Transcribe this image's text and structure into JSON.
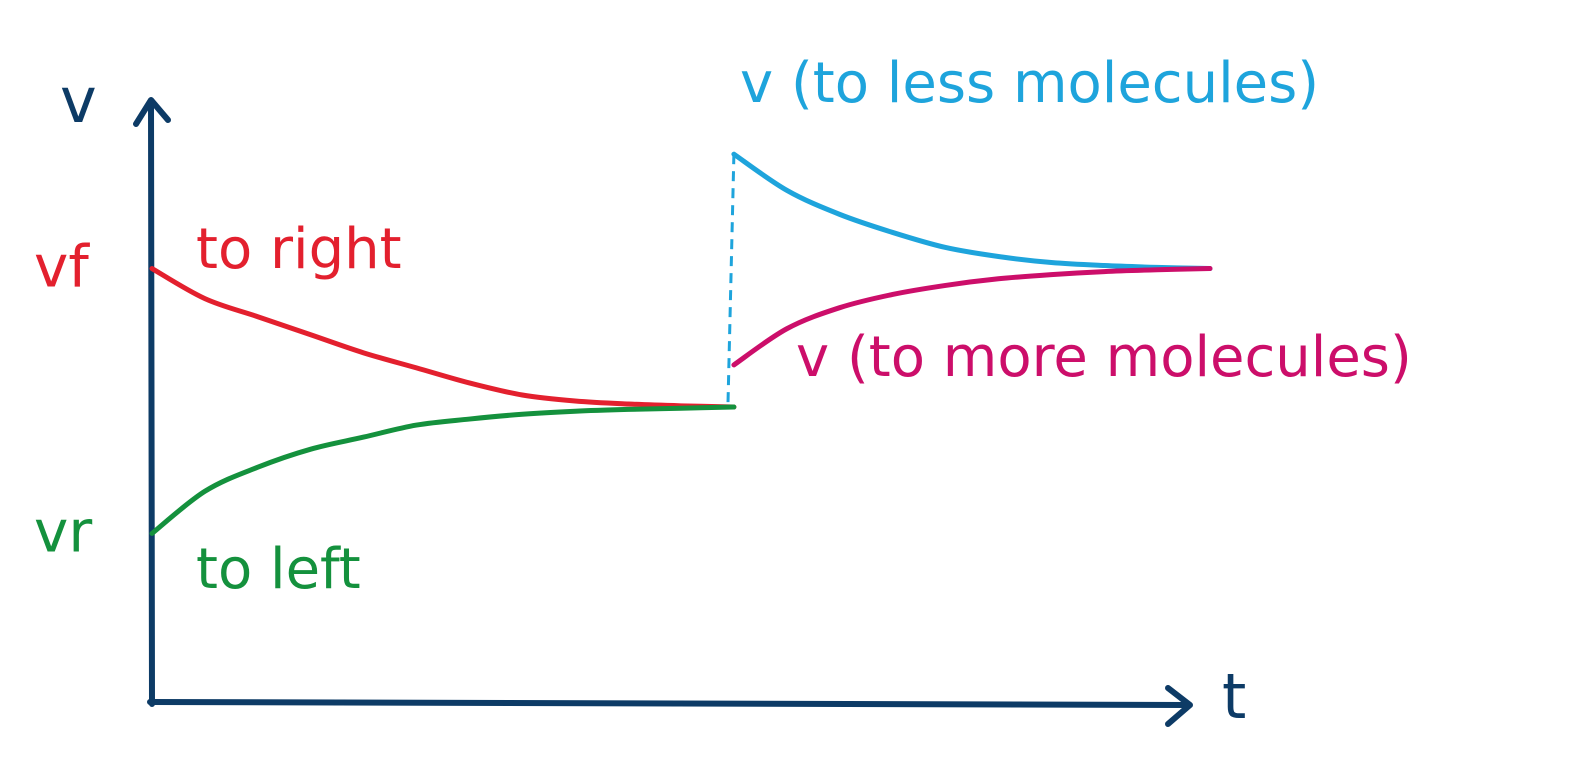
{
  "chart_data": {
    "type": "line",
    "title": "",
    "xlabel": "t",
    "ylabel": "v",
    "y_tick_labels": [
      {
        "text": "vf",
        "y": 0.72,
        "color": "#e3202e"
      },
      {
        "text": "vr",
        "y": 0.28,
        "color": "#14913d"
      }
    ],
    "x_range": [
      0,
      1
    ],
    "y_range": [
      0,
      1
    ],
    "grid": false,
    "disturbance_x": 0.55,
    "series": [
      {
        "name": "to right",
        "color": "#e3202e",
        "x": [
          0.0,
          0.05,
          0.1,
          0.15,
          0.2,
          0.25,
          0.3,
          0.35,
          0.4,
          0.45,
          0.5,
          0.55
        ],
        "y": [
          0.72,
          0.67,
          0.64,
          0.61,
          0.58,
          0.555,
          0.53,
          0.51,
          0.5,
          0.495,
          0.492,
          0.49
        ]
      },
      {
        "name": "to left",
        "color": "#14913d",
        "x": [
          0.0,
          0.05,
          0.1,
          0.15,
          0.2,
          0.25,
          0.3,
          0.35,
          0.4,
          0.45,
          0.5,
          0.55
        ],
        "y": [
          0.28,
          0.35,
          0.39,
          0.42,
          0.44,
          0.46,
          0.47,
          0.478,
          0.483,
          0.486,
          0.488,
          0.49
        ]
      },
      {
        "name": "v (to less molecules)",
        "color": "#1ea4dc",
        "x": [
          0.55,
          0.6,
          0.65,
          0.7,
          0.75,
          0.8,
          0.85,
          0.9,
          0.95,
          1.0
        ],
        "y": [
          0.91,
          0.85,
          0.81,
          0.78,
          0.755,
          0.74,
          0.73,
          0.725,
          0.722,
          0.72
        ]
      },
      {
        "name": "v (to more molecules)",
        "color": "#cc0e6a",
        "x": [
          0.55,
          0.6,
          0.65,
          0.7,
          0.75,
          0.8,
          0.85,
          0.9,
          0.95,
          1.0
        ],
        "y": [
          0.56,
          0.62,
          0.655,
          0.677,
          0.692,
          0.703,
          0.71,
          0.715,
          0.718,
          0.72
        ]
      }
    ],
    "annotations": [
      {
        "text": "to right",
        "color": "#e3202e"
      },
      {
        "text": "to left",
        "color": "#14913d"
      },
      {
        "text": "v (to less molecules)",
        "color": "#1ea4dc"
      },
      {
        "text": "v (to more molecules)",
        "color": "#cc0e6a"
      }
    ],
    "axis_color": "#0d3b66"
  }
}
